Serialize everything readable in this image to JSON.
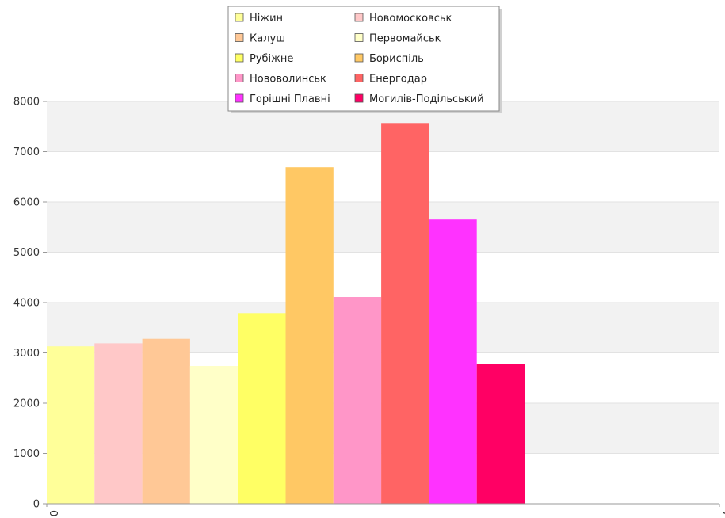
{
  "chart_data": {
    "type": "bar",
    "title": "",
    "xlabel": "",
    "ylabel": "",
    "ylim": [
      0,
      8000
    ],
    "yticks": [
      "0",
      "1000",
      "2000",
      "3000",
      "4000",
      "5000",
      "6000",
      "7000",
      "8000"
    ],
    "xticks": [
      "0",
      "7"
    ],
    "grid": true,
    "legend_position": "top-center",
    "series": [
      {
        "name": "Ніжин",
        "value": 3130,
        "color": "#ffff99"
      },
      {
        "name": "Новомосковськ",
        "value": 3190,
        "color": "#ffc8c8"
      },
      {
        "name": "Калуш",
        "value": 3280,
        "color": "#ffc896"
      },
      {
        "name": "Первомайськ",
        "value": 2740,
        "color": "#ffffc8"
      },
      {
        "name": "Рубіжне",
        "value": 3790,
        "color": "#ffff64"
      },
      {
        "name": "Бориспіль",
        "value": 6690,
        "color": "#ffc864"
      },
      {
        "name": "Нововолинськ",
        "value": 4110,
        "color": "#ff96c8"
      },
      {
        "name": "Енергодар",
        "value": 7570,
        "color": "#ff6464"
      },
      {
        "name": "Горішні Плавні",
        "value": 5650,
        "color": "#ff32ff"
      },
      {
        "name": "Могилів-Подільський",
        "value": 2780,
        "color": "#ff0064"
      }
    ]
  }
}
